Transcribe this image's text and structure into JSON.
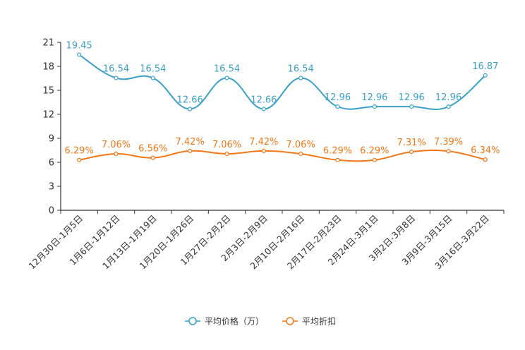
{
  "chart_data": {
    "type": "line",
    "title": "",
    "xlabel": "",
    "ylabel": "",
    "ylim": [
      0,
      21
    ],
    "yticks": [
      0,
      3,
      6,
      9,
      12,
      15,
      18,
      21
    ],
    "grid": false,
    "legend_position": "bottom",
    "categories": [
      "12月30日-1月5日",
      "1月6日-1月12日",
      "1月13日-1月19日",
      "1月20日-1月26日",
      "1月27日-2月2日",
      "2月3日-2月9日",
      "2月10日-2月16日",
      "2月17日-2月23日",
      "2月24日-3月1日",
      "3月2日-3月8日",
      "3月9日-3月15日",
      "3月16日-3月22日"
    ],
    "series": [
      {
        "name": "平均价格（万）",
        "color": "#3aa0c8",
        "values": [
          19.45,
          16.54,
          16.54,
          12.66,
          16.54,
          12.66,
          16.54,
          12.96,
          12.96,
          12.96,
          12.96,
          16.87
        ],
        "labels": [
          "19.45",
          "16.54",
          "16.54",
          "12.66",
          "16.54",
          "12.66",
          "16.54",
          "12.96",
          "12.96",
          "12.96",
          "12.96",
          "16.87"
        ]
      },
      {
        "name": "平均折扣",
        "color": "#f07818",
        "values": [
          6.29,
          7.06,
          6.56,
          7.42,
          7.06,
          7.42,
          7.06,
          6.29,
          6.29,
          7.31,
          7.39,
          6.34
        ],
        "labels": [
          "6.29%",
          "7.06%",
          "6.56%",
          "7.42%",
          "7.06%",
          "7.42%",
          "7.06%",
          "6.29%",
          "6.29%",
          "7.31%",
          "7.39%",
          "6.34%"
        ]
      }
    ]
  }
}
